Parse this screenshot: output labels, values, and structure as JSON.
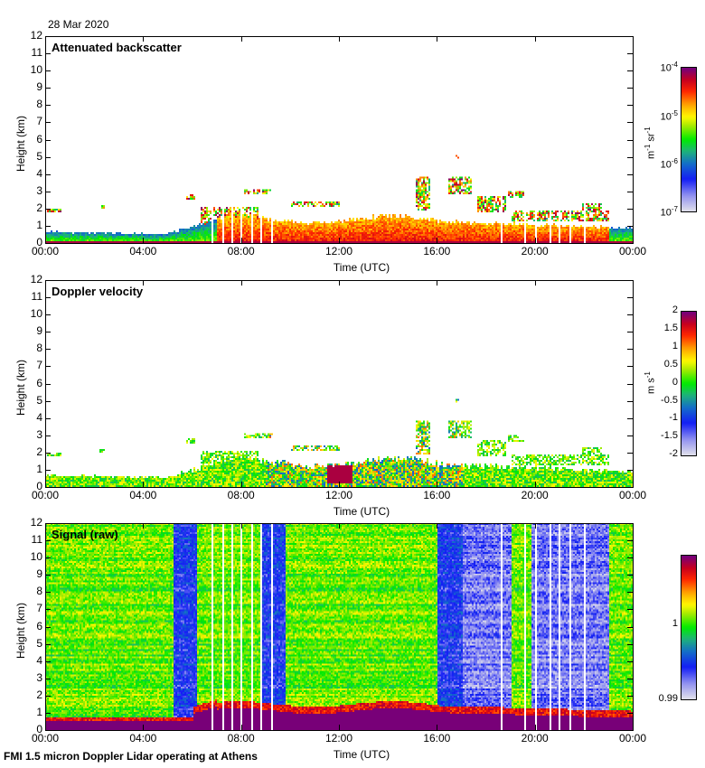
{
  "date": "28 Mar 2020",
  "footer": "FMI 1.5 micron Doppler Lidar operating at Athens",
  "chart_data": [
    {
      "type": "heatmap",
      "title": "Attenuated backscatter",
      "xlabel": "Time (UTC)",
      "ylabel": "Height (km)",
      "xlim": [
        0,
        24
      ],
      "ylim": [
        0,
        12
      ],
      "x_ticks": [
        "00:00",
        "04:00",
        "08:00",
        "12:00",
        "16:00",
        "20:00",
        "00:00"
      ],
      "y_ticks": [
        "0",
        "1",
        "2",
        "3",
        "4",
        "5",
        "6",
        "7",
        "8",
        "9",
        "10",
        "11",
        "12"
      ],
      "colorbar": {
        "scale": "log",
        "range": [
          1e-07,
          0.0001
        ],
        "ticks": [
          "10^-7",
          "10^-6",
          "10^-5",
          "10^-4"
        ],
        "unit": "m-1 sr-1"
      },
      "features": {
        "boundary_layer_top_km": [
          0.6,
          1.0,
          1.5,
          1.0
        ],
        "max_cloud_height_km": 5.0,
        "data_gaps_hours": [
          6.8,
          7.2,
          7.6,
          8.0,
          8.4,
          8.8,
          9.2,
          18.6,
          19.6,
          20.0,
          20.6,
          21.0,
          21.4
        ]
      }
    },
    {
      "type": "heatmap",
      "title": "Doppler velocity",
      "xlabel": "Time (UTC)",
      "ylabel": "Height (km)",
      "xlim": [
        0,
        24
      ],
      "ylim": [
        0,
        12
      ],
      "x_ticks": [
        "00:00",
        "04:00",
        "08:00",
        "12:00",
        "16:00",
        "20:00",
        "00:00"
      ],
      "y_ticks": [
        "0",
        "1",
        "2",
        "3",
        "4",
        "5",
        "6",
        "7",
        "8",
        "9",
        "10",
        "11",
        "12"
      ],
      "colorbar": {
        "scale": "linear",
        "range": [
          -2,
          2
        ],
        "ticks": [
          "2",
          "1.5",
          "1",
          "0.5",
          "0",
          "-0.5",
          "-1",
          "-1.5",
          "-2"
        ],
        "unit": "m s-1"
      }
    },
    {
      "type": "heatmap",
      "title": "Signal (raw)",
      "xlabel": "Time (UTC)",
      "ylabel": "Height (km)",
      "xlim": [
        0,
        24
      ],
      "ylim": [
        0,
        12
      ],
      "x_ticks": [
        "00:00",
        "04:00",
        "08:00",
        "12:00",
        "16:00",
        "20:00",
        "00:00"
      ],
      "y_ticks": [
        "0",
        "1",
        "2",
        "3",
        "4",
        "5",
        "6",
        "7",
        "8",
        "9",
        "10",
        "11",
        "12"
      ],
      "colorbar": {
        "scale": "linear",
        "range": [
          0.99,
          1.01
        ],
        "ticks": [
          "1",
          "0.99"
        ],
        "unit": ""
      },
      "features": {
        "low_signal_bands_hours": [
          [
            5.2,
            6.2
          ],
          [
            8.8,
            9.8
          ],
          [
            16.0,
            17.0
          ],
          [
            17.0,
            19.0
          ],
          [
            19.8,
            22.0
          ],
          [
            22.0,
            23.0
          ]
        ]
      }
    }
  ],
  "cb_labels": {
    "p1": {
      "t4": "10",
      "t4e": "-4",
      "t5": "10",
      "t5e": "-5",
      "t6": "10",
      "t6e": "-6",
      "t7": "10",
      "t7e": "-7",
      "unit_a": "m",
      "unit_ae": "-1",
      "unit_b": " sr",
      "unit_be": "-1"
    },
    "p2": {
      "unit_a": "m s",
      "unit_ae": "-1"
    }
  }
}
